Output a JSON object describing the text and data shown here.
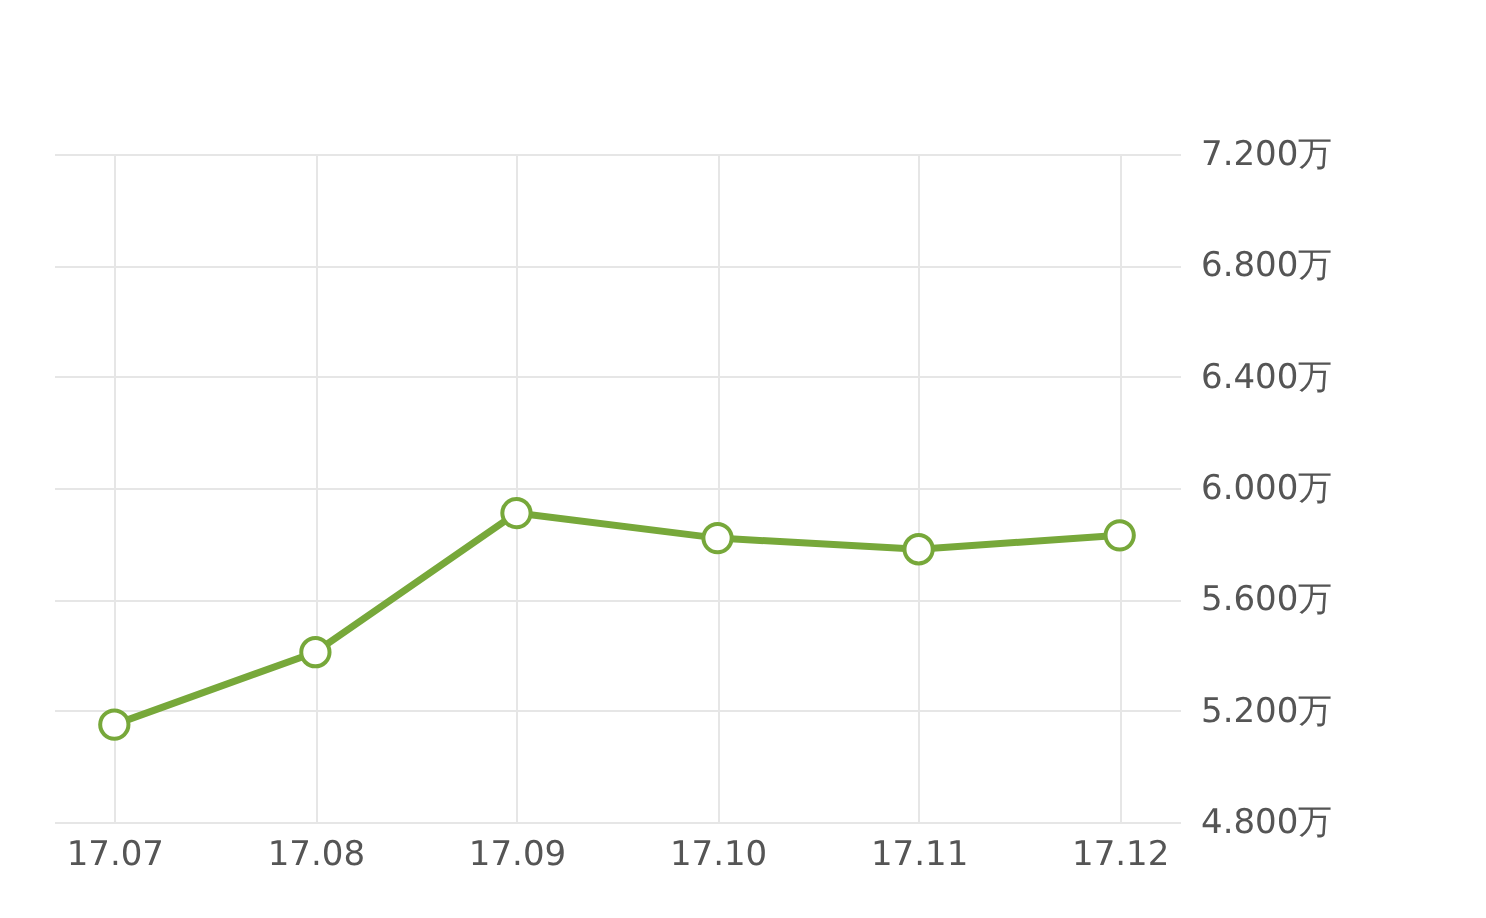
{
  "chart_data": {
    "type": "line",
    "categories": [
      "17.07",
      "17.08",
      "17.09",
      "17.10",
      "17.11",
      "17.12"
    ],
    "series": [
      {
        "color": "#77a83a",
        "values": [
          5.15,
          5.41,
          5.91,
          5.82,
          5.78,
          5.83
        ]
      }
    ],
    "ylim": [
      4.8,
      7.2
    ],
    "yticks": [
      {
        "value": 4.8,
        "label": "4.800万"
      },
      {
        "value": 5.2,
        "label": "5.200万"
      },
      {
        "value": 5.6,
        "label": "5.600万"
      },
      {
        "value": 6.0,
        "label": "6.000万"
      },
      {
        "value": 6.4,
        "label": "6.400万"
      },
      {
        "value": 6.8,
        "label": "6.800万"
      },
      {
        "value": 7.2,
        "label": "7.200万"
      }
    ],
    "grid": true,
    "marker": "circle",
    "line_style": "solid"
  }
}
